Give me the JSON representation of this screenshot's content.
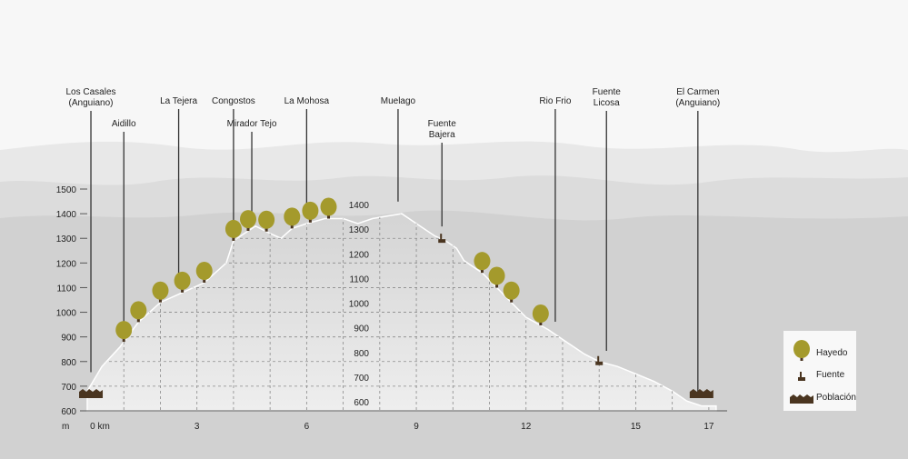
{
  "chart_data": {
    "type": "area",
    "title": "",
    "xlabel": "km",
    "ylabel": "m",
    "xlim": [
      0,
      17.5
    ],
    "ylim": [
      600,
      1500
    ],
    "x_ticks": [
      {
        "value": 0,
        "label": "0 km"
      },
      {
        "value": 3,
        "label": "3"
      },
      {
        "value": 6,
        "label": "6"
      },
      {
        "value": 9,
        "label": "9"
      },
      {
        "value": 12,
        "label": "12"
      },
      {
        "value": 15,
        "label": "15"
      },
      {
        "value": 17,
        "label": "17"
      }
    ],
    "y_ticks": [
      600,
      700,
      800,
      900,
      1000,
      1100,
      1200,
      1300,
      1400,
      1500
    ],
    "inner_y_ticks": [
      600,
      700,
      800,
      900,
      1000,
      1100,
      1200,
      1300,
      1400
    ],
    "profile": {
      "x": [
        0,
        0.4,
        0.9,
        1.4,
        2.0,
        2.6,
        3.2,
        3.8,
        4.0,
        4.3,
        4.6,
        5.0,
        5.3,
        5.6,
        6.0,
        6.5,
        7.0,
        7.4,
        7.8,
        8.2,
        8.6,
        9.0,
        9.5,
        9.8,
        10.1,
        10.3,
        10.8,
        11.4,
        12.0,
        12.6,
        13.1,
        13.6,
        14.0,
        14.5,
        15.0,
        15.5,
        16.0,
        16.4,
        16.8,
        17.2
      ],
      "y": [
        680,
        780,
        860,
        960,
        1040,
        1080,
        1120,
        1200,
        1290,
        1320,
        1350,
        1320,
        1300,
        1340,
        1360,
        1380,
        1380,
        1360,
        1380,
        1390,
        1400,
        1360,
        1310,
        1290,
        1260,
        1210,
        1160,
        1070,
        980,
        930,
        880,
        830,
        800,
        780,
        750,
        720,
        680,
        640,
        620,
        620
      ]
    },
    "waypoints": [
      {
        "name": "Los Casales\n(Anguiano)",
        "x": 0.1
      },
      {
        "name": "Aidillo",
        "x": 1.0
      },
      {
        "name": "La Tejera",
        "x": 2.5
      },
      {
        "name": "Congostos",
        "x": 4.0
      },
      {
        "name": "Mirador Tejo",
        "x": 4.5
      },
      {
        "name": "La Mohosa",
        "x": 6.0
      },
      {
        "name": "Muelago",
        "x": 8.5
      },
      {
        "name": "Fuente\nBajera",
        "x": 9.7
      },
      {
        "name": "Rio Frio",
        "x": 12.8
      },
      {
        "name": "Fuente\nLicosa",
        "x": 14.2
      },
      {
        "name": "El Carmen\n(Anguiano)",
        "x": 16.7
      }
    ],
    "markers": {
      "hayedo": [
        1.0,
        1.4,
        2.0,
        2.6,
        3.2,
        4.0,
        4.4,
        4.9,
        5.6,
        6.1,
        6.6,
        10.8,
        11.2,
        11.6,
        12.4
      ],
      "fuente": [
        9.7,
        14.0
      ],
      "poblacion": [
        0.1,
        16.8
      ]
    },
    "legend": {
      "position": "bottom-right",
      "items": [
        {
          "key": "hayedo",
          "label": "Hayedo"
        },
        {
          "key": "fuente",
          "label": "Fuente"
        },
        {
          "key": "poblacion",
          "label": "Población"
        }
      ]
    },
    "grid": true,
    "colors": {
      "area_top": "#d4d4d4",
      "area_bottom": "#eeeeee",
      "hayedo": "#a49a2c",
      "fuente": "#4a3520",
      "poblacion": "#4a3520",
      "mountains": [
        "#e5e5e5",
        "#dadada",
        "#cfcfcf"
      ]
    }
  }
}
